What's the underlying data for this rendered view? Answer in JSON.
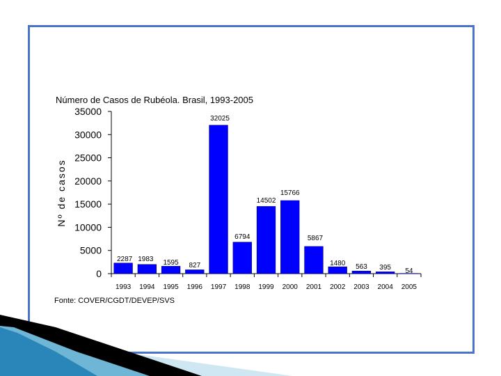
{
  "colors": {
    "frame": "#4a74c9",
    "bar": "#0000ff",
    "bar_outline": "#000080",
    "text": "#000000"
  },
  "chart_data": {
    "type": "bar",
    "title": "Número de Casos de Rubéola. Brasil, 1993-2005",
    "xlabel": "",
    "ylabel": "Nº de casos",
    "categories": [
      "1993",
      "1994",
      "1995",
      "1996",
      "1997",
      "1998",
      "1999",
      "2000",
      "2001",
      "2002",
      "2003",
      "2004",
      "2005"
    ],
    "values": [
      2287,
      1983,
      1595,
      827,
      32025,
      6794,
      14502,
      15766,
      5867,
      1480,
      563,
      395,
      54
    ],
    "data_labels": [
      "2287",
      "1983",
      "1595",
      "827",
      "32025",
      "6794",
      "14502",
      "15766",
      "5867",
      "1480",
      "563",
      "395",
      "54"
    ],
    "ylim": [
      0,
      35000
    ],
    "yticks": [
      0,
      5000,
      10000,
      15000,
      20000,
      25000,
      30000,
      35000
    ],
    "ytick_labels": [
      "0",
      "5000",
      "10000",
      "15000",
      "20000",
      "25000",
      "30000",
      "35000"
    ],
    "grid": false,
    "legend": "none",
    "source": "Fonte: COVER/CGDT/DEVEP/SVS"
  }
}
